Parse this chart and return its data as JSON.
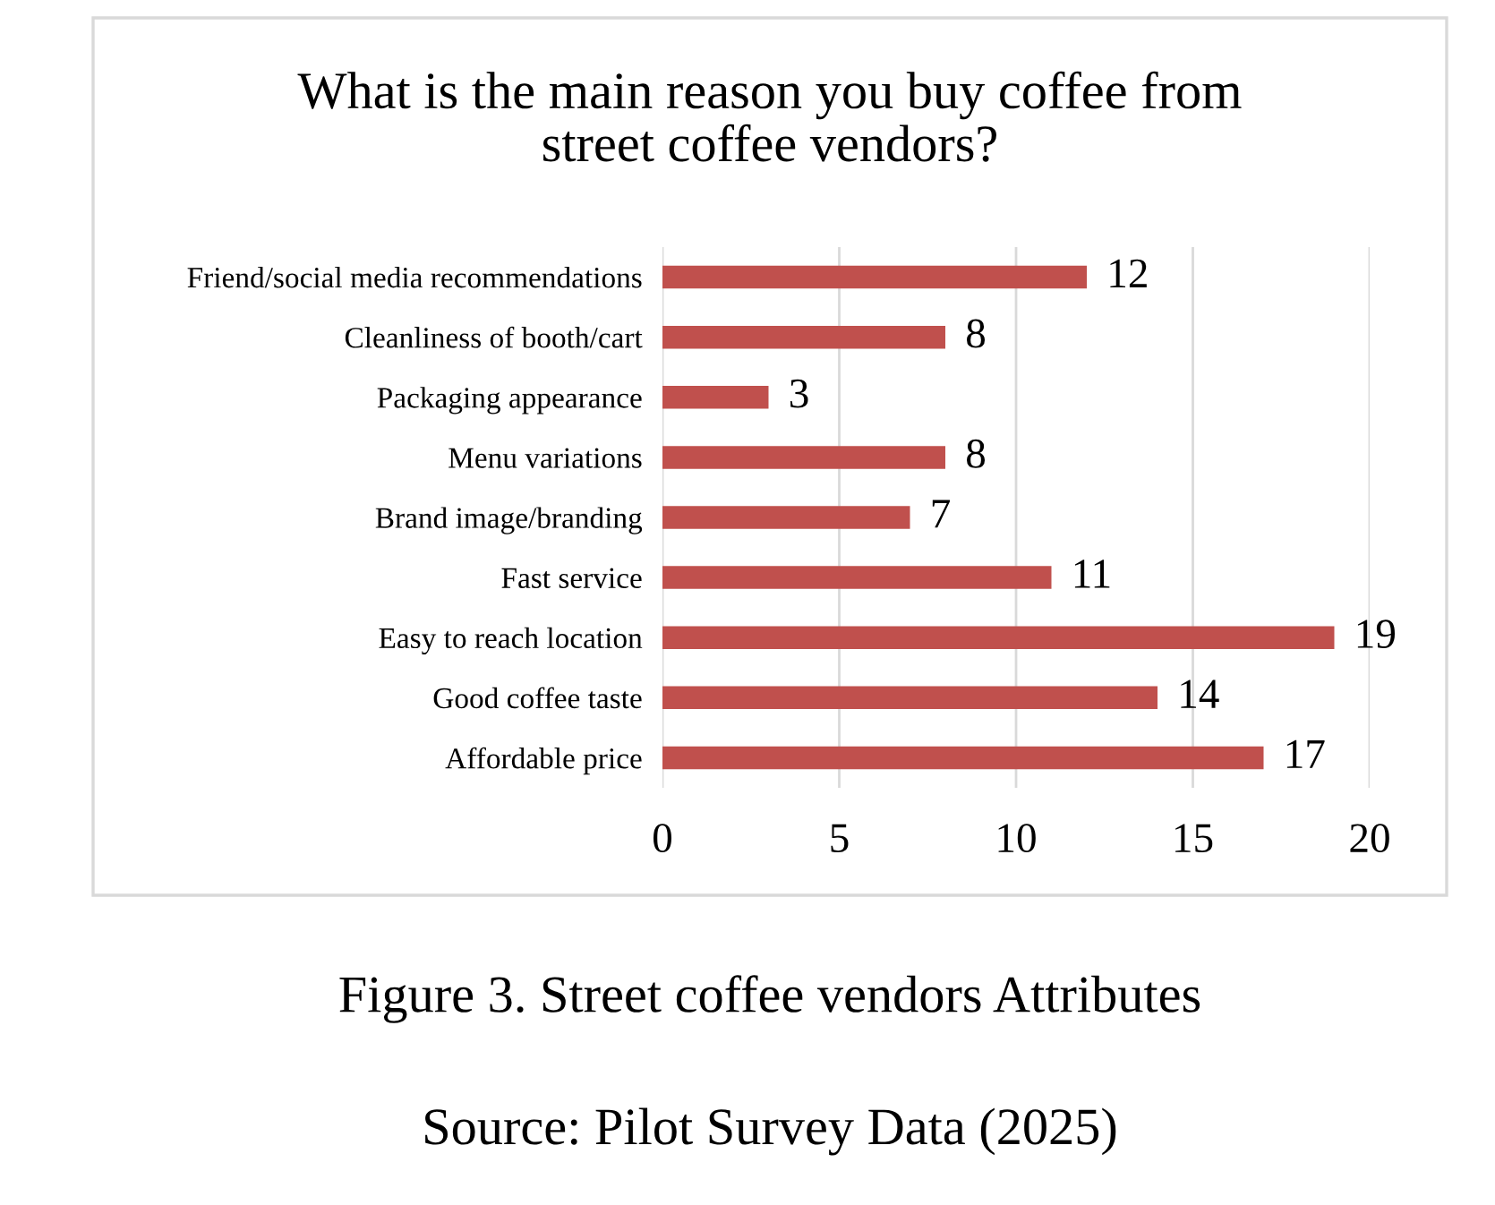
{
  "chart_data": {
    "type": "bar",
    "orientation": "horizontal",
    "title": "What is the main reason you buy coffee from\nstreet coffee vendors?",
    "categories": [
      "Friend/social media recommendations",
      "Cleanliness of booth/cart",
      "Packaging appearance",
      "Menu variations",
      "Brand image/branding",
      "Fast service",
      "Easy to reach location",
      "Good coffee taste",
      "Affordable price"
    ],
    "values": [
      12,
      8,
      3,
      8,
      7,
      11,
      19,
      14,
      17
    ],
    "color": "#c0504d",
    "xlim": [
      0,
      20
    ],
    "xticks": [
      0,
      5,
      10,
      15,
      20
    ],
    "grid": "x",
    "data_labels": true,
    "annotations": [
      "Figure 3. Street coffee vendors Attributes",
      "Source: Pilot Survey Data (2025)"
    ]
  }
}
